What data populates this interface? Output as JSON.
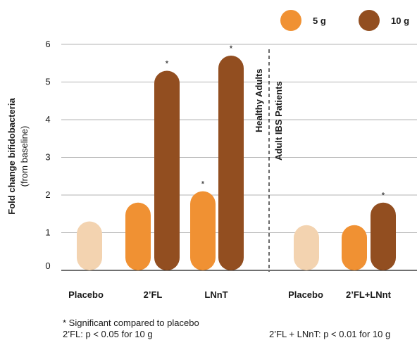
{
  "colors": {
    "placebo": "#f3d3b0",
    "dose_5g": "#f09133",
    "dose_10g": "#924e20",
    "grid": "#9a9a9a",
    "axis": "#1a1a1a"
  },
  "legend": [
    {
      "label": "5 g",
      "color": "#f09133"
    },
    {
      "label": "10 g",
      "color": "#924e20"
    }
  ],
  "group_labels": {
    "left": "Healthy Adults",
    "right": "Adult IBS Patients"
  },
  "footnotes": {
    "line1": "* Significant compared to placebo",
    "line2": "2’FL: p < 0.05 for 10 g",
    "line3": "2’FL + LNnT: p < 0.01 for 10 g"
  },
  "chart_data": {
    "type": "bar",
    "ylabel": "Fold change bifidobacteria",
    "ylabel_sub": "(from baseline)",
    "ylim": [
      0,
      6
    ],
    "yticks": [
      0,
      1,
      2,
      3,
      4,
      5,
      6
    ],
    "grid": true,
    "legend_position": "top-right",
    "categories": [
      "Placebo",
      "2’FL",
      "LNnT",
      "Placebo",
      "2’FL+LNnt"
    ],
    "bars": [
      {
        "category": "Placebo",
        "series": "placebo",
        "value": 1.3,
        "significant": false
      },
      {
        "category": "2’FL",
        "series": "5 g",
        "value": 1.8,
        "significant": false
      },
      {
        "category": "2’FL",
        "series": "10 g",
        "value": 5.3,
        "significant": true
      },
      {
        "category": "LNnT",
        "series": "5 g",
        "value": 2.1,
        "significant": true
      },
      {
        "category": "LNnT",
        "series": "10 g",
        "value": 5.7,
        "significant": true
      },
      {
        "category": "Placebo",
        "series": "placebo",
        "value": 1.2,
        "significant": false
      },
      {
        "category": "2’FL+LNnt",
        "series": "5 g",
        "value": 1.2,
        "significant": false
      },
      {
        "category": "2’FL+LNnt",
        "series": "10 g",
        "value": 1.8,
        "significant": true
      }
    ],
    "significance_marker": "*"
  }
}
